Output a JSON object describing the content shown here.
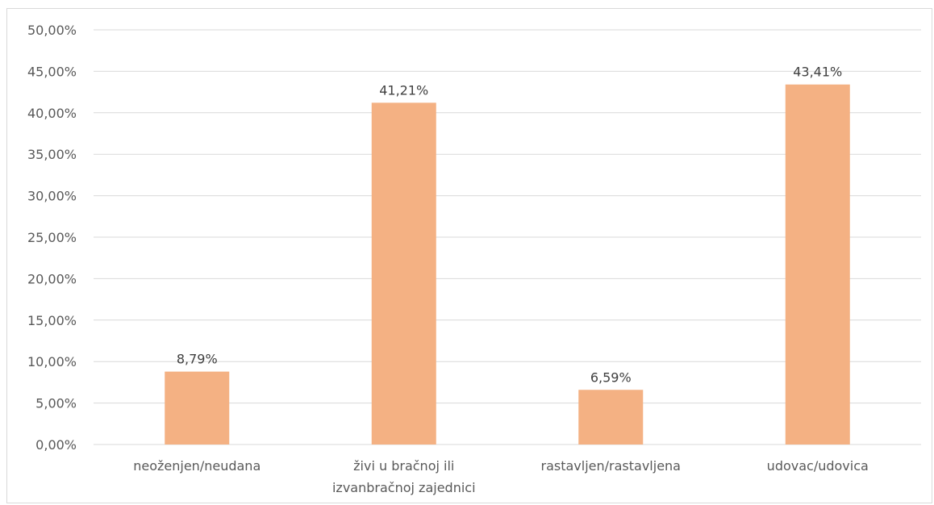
{
  "chart_data": {
    "type": "bar",
    "categories": [
      "neoženjen/neudana",
      "živi u bračnoj ili izvanbračnoj zajednici",
      "rastavljen/rastavljena",
      "udovac/udovica"
    ],
    "category_lines": [
      [
        "neoženjen/neudana"
      ],
      [
        "živi u bračnoj ili",
        "izvanbračnoj zajednici"
      ],
      [
        "rastavljen/rastavljena"
      ],
      [
        "udovac/udovica"
      ]
    ],
    "values": [
      8.79,
      41.21,
      6.59,
      43.41
    ],
    "data_labels": [
      "8,79%",
      "41,21%",
      "6,59%",
      "43,41%"
    ],
    "y_ticks": [
      0,
      5,
      10,
      15,
      20,
      25,
      30,
      35,
      40,
      45,
      50
    ],
    "y_tick_labels": [
      "0,00%",
      "5,00%",
      "10,00%",
      "15,00%",
      "20,00%",
      "25,00%",
      "30,00%",
      "35,00%",
      "40,00%",
      "45,00%",
      "50,00%"
    ],
    "ylim": [
      0,
      50
    ],
    "grid": true,
    "legend": "none",
    "title": "",
    "xlabel": "",
    "ylabel": "",
    "bar_color": "#F4B183",
    "grid_color": "#D9D9D9"
  }
}
